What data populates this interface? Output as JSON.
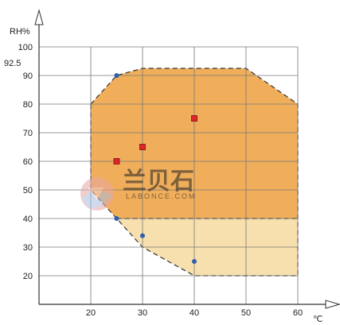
{
  "chart_data": {
    "type": "scatter",
    "ylabel": "RH%",
    "xlabel_unit": "℃",
    "xlim": [
      10,
      60
    ],
    "ylim": [
      10,
      100
    ],
    "x_ticks": [
      20,
      30,
      40,
      50,
      60
    ],
    "y_ticks": [
      20,
      30,
      40,
      50,
      60,
      70,
      80,
      90,
      100
    ],
    "extra_y_tick": {
      "label": "92.5",
      "value": 92.5
    },
    "grid": true,
    "regions": [
      {
        "id": "outer-range",
        "color": "#F0AE5B",
        "polygon": [
          [
            20,
            80
          ],
          [
            25,
            90
          ],
          [
            30,
            92.5
          ],
          [
            50,
            92.5
          ],
          [
            60,
            80
          ],
          [
            60,
            40
          ],
          [
            25,
            40
          ],
          [
            20,
            50
          ]
        ]
      },
      {
        "id": "lower-extension",
        "color": "#F8DFAE",
        "polygon": [
          [
            25,
            40
          ],
          [
            60,
            40
          ],
          [
            60,
            20
          ],
          [
            40,
            20
          ],
          [
            30,
            30
          ]
        ]
      }
    ],
    "series": [
      {
        "marker": "circle",
        "color": "#2E5FB0",
        "points": [
          [
            25,
            90
          ],
          [
            25,
            40
          ],
          [
            30,
            34
          ],
          [
            40,
            25
          ]
        ]
      },
      {
        "marker": "square",
        "color": "#E0262A",
        "points": [
          [
            25,
            60
          ],
          [
            30,
            65
          ],
          [
            40,
            75
          ]
        ]
      }
    ]
  },
  "watermark": {
    "brand_cn": "兰贝石",
    "brand_en": "LABONCE.COM"
  }
}
